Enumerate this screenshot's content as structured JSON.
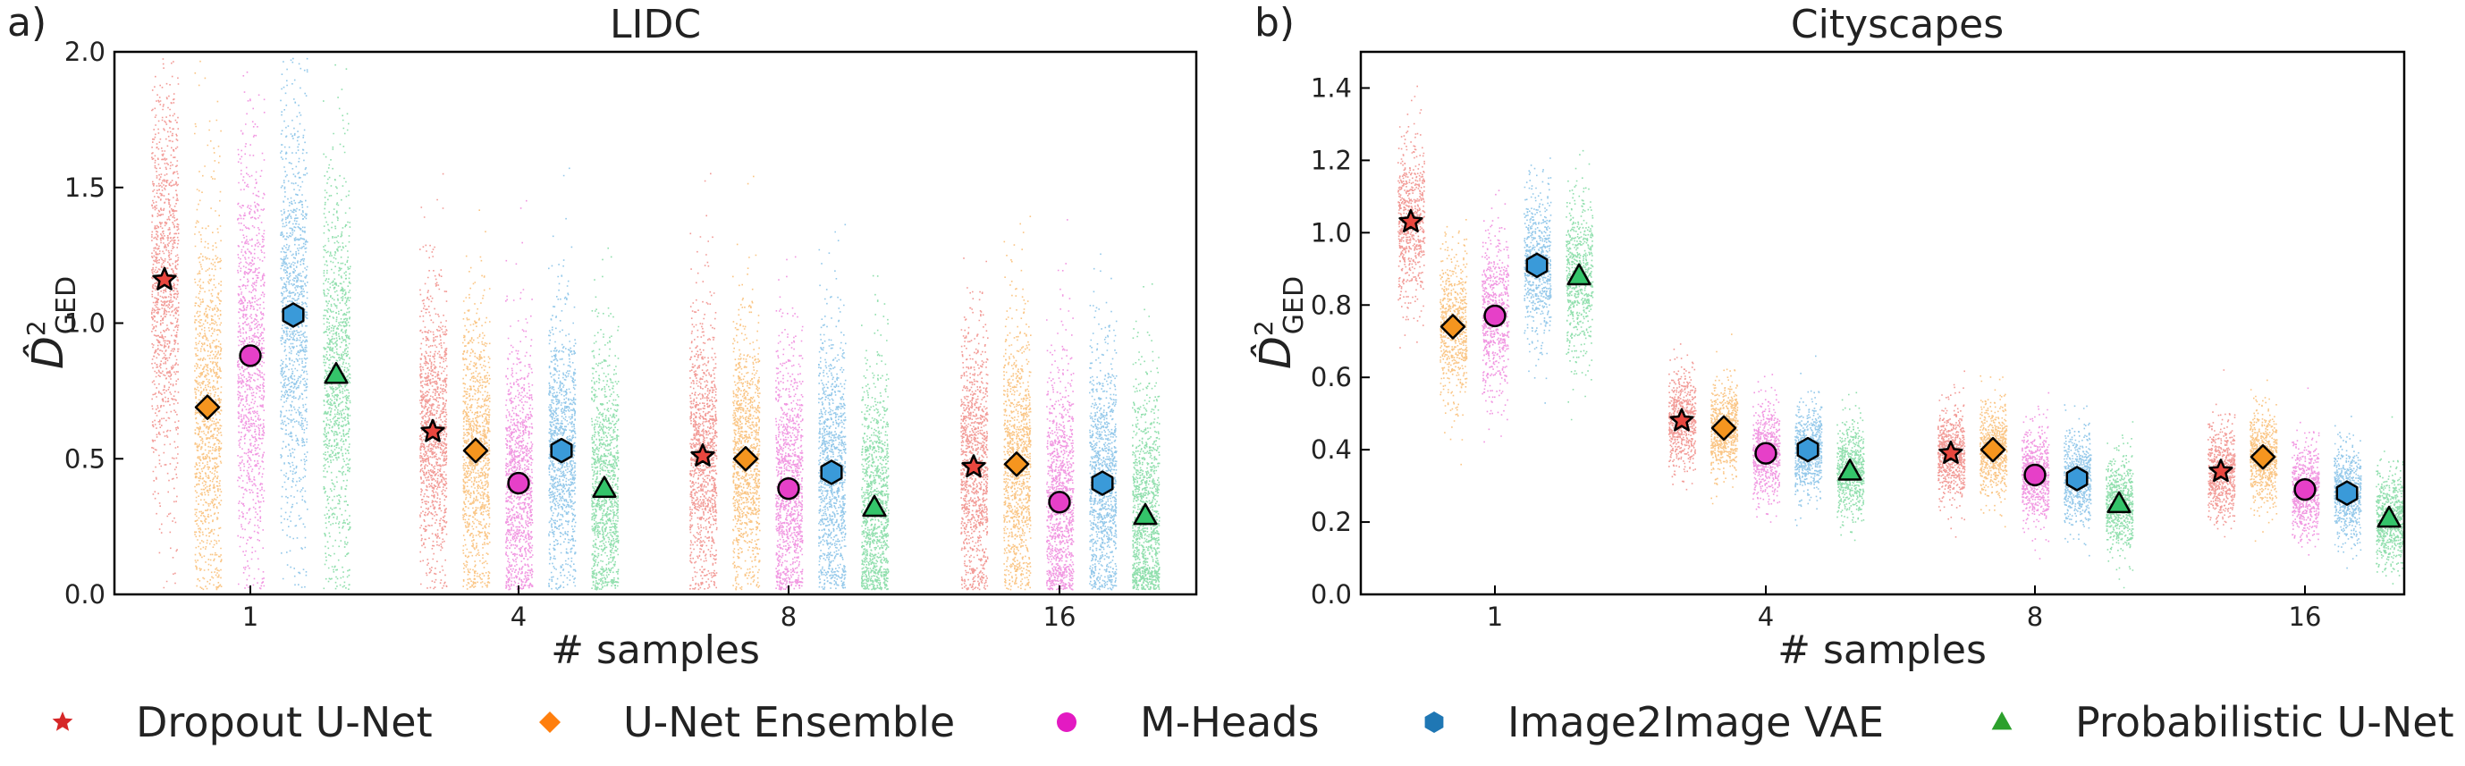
{
  "chart_data": [
    {
      "type": "scatter",
      "panel_label": "a)",
      "title": "LIDC",
      "xlabel": "# samples",
      "ylabel": "D̂²_GED",
      "categories": [
        "1",
        "4",
        "8",
        "16"
      ],
      "ylim": [
        0,
        2.0
      ],
      "yticks": [
        "0.0",
        "0.5",
        "1.0",
        "1.5",
        "2.0"
      ],
      "grid": false,
      "series": [
        {
          "name": "Dropout U-Net",
          "values": [
            1.16,
            0.6,
            0.51,
            0.47
          ]
        },
        {
          "name": "U-Net Ensemble",
          "values": [
            0.69,
            0.53,
            0.5,
            0.48
          ]
        },
        {
          "name": "M-Heads",
          "values": [
            0.88,
            0.41,
            0.39,
            0.34
          ]
        },
        {
          "name": "Image2Image VAE",
          "values": [
            1.03,
            0.53,
            0.45,
            0.41
          ]
        },
        {
          "name": "Probabilistic U-Net",
          "values": [
            0.81,
            0.39,
            0.32,
            0.29
          ]
        }
      ]
    },
    {
      "type": "scatter",
      "panel_label": "b)",
      "title": "Cityscapes",
      "xlabel": "# samples",
      "ylabel": "D̂²_GED",
      "categories": [
        "1",
        "4",
        "8",
        "16"
      ],
      "ylim": [
        0,
        1.5
      ],
      "yticks": [
        "0.0",
        "0.2",
        "0.4",
        "0.6",
        "0.8",
        "1.0",
        "1.2",
        "1.4"
      ],
      "grid": false,
      "series": [
        {
          "name": "Dropout U-Net",
          "values": [
            1.03,
            0.48,
            0.39,
            0.34
          ]
        },
        {
          "name": "U-Net Ensemble",
          "values": [
            0.74,
            0.46,
            0.4,
            0.38
          ]
        },
        {
          "name": "M-Heads",
          "values": [
            0.77,
            0.39,
            0.33,
            0.29
          ]
        },
        {
          "name": "Image2Image VAE",
          "values": [
            0.91,
            0.4,
            0.32,
            0.28
          ]
        },
        {
          "name": "Probabilistic U-Net",
          "values": [
            0.88,
            0.34,
            0.25,
            0.21
          ]
        }
      ]
    }
  ],
  "legend": {
    "placement": "bottom",
    "items": [
      {
        "label": "Dropout U-Net",
        "color": "#d62728",
        "marker": "star"
      },
      {
        "label": "U-Net Ensemble",
        "color": "#ff7f0e",
        "marker": "diamond"
      },
      {
        "label": "M-Heads",
        "color": "#e31ac2",
        "marker": "circle"
      },
      {
        "label": "Image2Image VAE",
        "color": "#1f77b4",
        "marker": "hexagon"
      },
      {
        "label": "Probabilistic U-Net",
        "color": "#2ca02c",
        "marker": "triangle"
      }
    ]
  },
  "series_colors": {
    "cloud": [
      "#e8473f",
      "#f5951f",
      "#e640c8",
      "#3a9ad9",
      "#34c46a"
    ],
    "marker": [
      "#e8473f",
      "#f5951f",
      "#e640c8",
      "#3a9ad9",
      "#34c46a"
    ]
  }
}
